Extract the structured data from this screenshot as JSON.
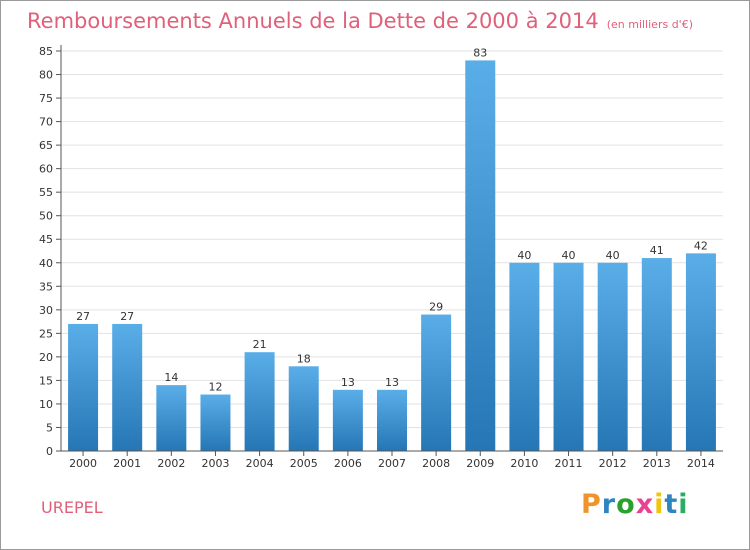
{
  "title": "Remboursements Annuels de la Dette de 2000 à 2014",
  "subtitle": "(en milliers d'€)",
  "commune": "UREPEL",
  "logo": {
    "letters": [
      "P",
      "r",
      "o",
      "x",
      "i",
      "t",
      "i"
    ],
    "colors": [
      "#f0932b",
      "#2e86c1",
      "#2ca02c",
      "#e84393",
      "#f1c40f",
      "#2e86c1",
      "#27ae60"
    ]
  },
  "chart_data": {
    "type": "bar",
    "categories": [
      "2000",
      "2001",
      "2002",
      "2003",
      "2004",
      "2005",
      "2006",
      "2007",
      "2008",
      "2009",
      "2010",
      "2011",
      "2012",
      "2013",
      "2014"
    ],
    "values": [
      27,
      27,
      14,
      12,
      21,
      18,
      13,
      13,
      29,
      83,
      40,
      40,
      40,
      41,
      42
    ],
    "ylim": [
      0,
      85
    ],
    "yticks": [
      0,
      5,
      10,
      15,
      20,
      25,
      30,
      35,
      40,
      45,
      50,
      55,
      60,
      65,
      70,
      75,
      80,
      85
    ],
    "grid": true,
    "bar_color_top": "#5aaee8",
    "bar_color_bottom": "#2676b5",
    "xlabel": "",
    "ylabel": ""
  }
}
